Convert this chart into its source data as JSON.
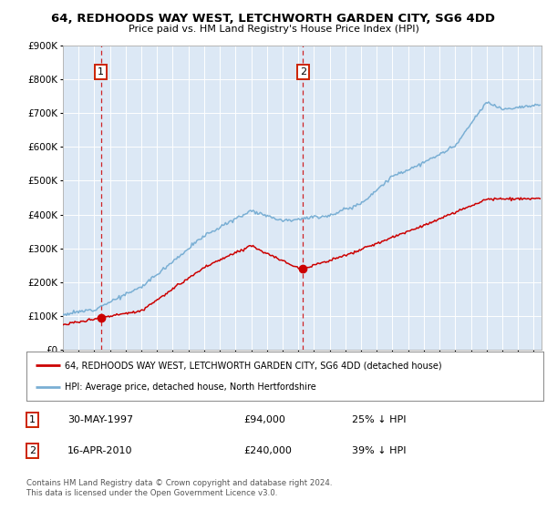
{
  "title": "64, REDHOODS WAY WEST, LETCHWORTH GARDEN CITY, SG6 4DD",
  "subtitle": "Price paid vs. HM Land Registry's House Price Index (HPI)",
  "legend_line1": "64, REDHOODS WAY WEST, LETCHWORTH GARDEN CITY, SG6 4DD (detached house)",
  "legend_line2": "HPI: Average price, detached house, North Hertfordshire",
  "transaction1_date": "30-MAY-1997",
  "transaction1_price": "£94,000",
  "transaction1_hpi": "25% ↓ HPI",
  "transaction1_year": 1997.42,
  "transaction1_price_val": 94000,
  "transaction2_date": "16-APR-2010",
  "transaction2_price": "£240,000",
  "transaction2_hpi": "39% ↓ HPI",
  "transaction2_year": 2010.29,
  "transaction2_price_val": 240000,
  "footer": "Contains HM Land Registry data © Crown copyright and database right 2024.\nThis data is licensed under the Open Government Licence v3.0.",
  "xmin": 1995.0,
  "xmax": 2025.5,
  "ymin": 0,
  "ymax": 900000,
  "yticks": [
    0,
    100000,
    200000,
    300000,
    400000,
    500000,
    600000,
    700000,
    800000,
    900000
  ],
  "bg_color": "#ffffff",
  "plot_bg": "#dce8f5",
  "red_color": "#cc0000",
  "blue_color": "#7aafd4",
  "grid_color": "#ffffff",
  "box_edge_color": "#cc2200"
}
